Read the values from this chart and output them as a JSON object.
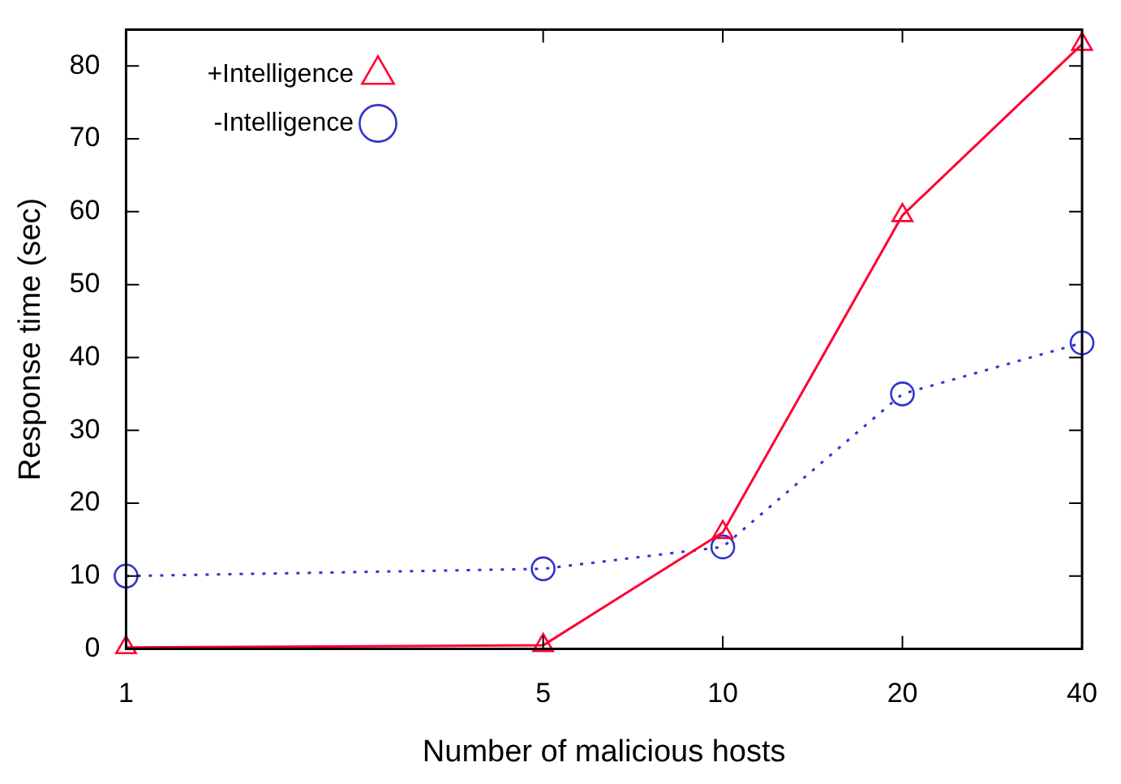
{
  "chart_data": {
    "type": "line",
    "xlabel": "Number of malicious hosts",
    "ylabel": "Response time (sec)",
    "log": "x",
    "x": [
      1,
      5,
      10,
      20,
      40
    ],
    "xlim": [
      1,
      40
    ],
    "xticks": [
      1,
      5,
      10,
      20,
      40
    ],
    "ylim": [
      0,
      85
    ],
    "yticks": [
      0,
      10,
      20,
      30,
      40,
      50,
      60,
      70,
      80
    ],
    "grid": false,
    "legend": "top left",
    "series": [
      {
        "name": "+Intelligence",
        "color": "#ff0033",
        "values": [
          0.2,
          0.5,
          16,
          59.5,
          83
        ],
        "marker": "triangle",
        "line_style": "solid"
      },
      {
        "name": "-Intelligence",
        "color": "#3333cc",
        "values": [
          10,
          11,
          14,
          35,
          42
        ],
        "marker": "circle",
        "line_style": "dotted"
      }
    ]
  }
}
